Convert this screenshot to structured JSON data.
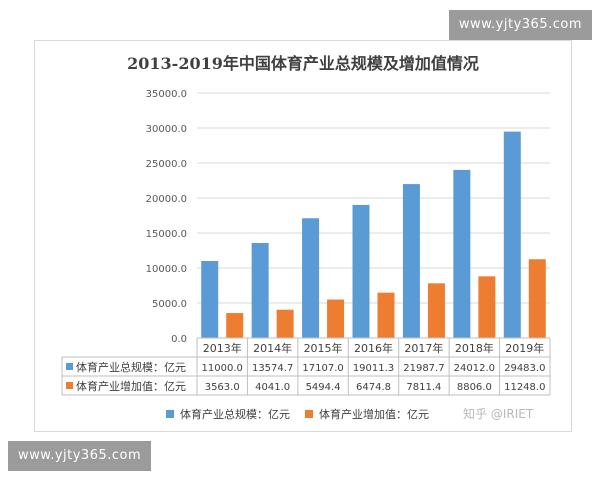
{
  "watermark_top": "www.yjty365.com",
  "watermark_bottom": "www.yjty365.com",
  "zhihu_credit": "知乎 @IRIET",
  "chart_data": {
    "type": "bar",
    "title": "2013-2019年中国体育产业总规模及增加值情况",
    "categories": [
      "2013年",
      "2014年",
      "2015年",
      "2016年",
      "2017年",
      "2018年",
      "2019年"
    ],
    "series": [
      {
        "name": "体育产业总规模：亿元",
        "color": "#5b9bd5",
        "values": [
          11000.0,
          13574.7,
          17107.0,
          19011.3,
          21987.7,
          24012.0,
          29483.0
        ],
        "labels": [
          "11000.0",
          "13574.7",
          "17107.0",
          "19011.3",
          "21987.7",
          "24012.0",
          "29483.0"
        ]
      },
      {
        "name": "体育产业增加值：亿元",
        "color": "#ed7d31",
        "values": [
          3563.0,
          4041.0,
          5494.4,
          6474.8,
          7811.4,
          8806.0,
          11248.0
        ],
        "labels": [
          "3563.0",
          "4041.0",
          "5494.4",
          "6474.8",
          "7811.4",
          "8806.0",
          "11248.0"
        ]
      }
    ],
    "ylim": [
      0,
      35000
    ],
    "yticks": [
      "0.0",
      "5000.0",
      "10000.0",
      "15000.0",
      "20000.0",
      "25000.0",
      "30000.0",
      "35000.0"
    ],
    "grid": true,
    "legend": "bottom",
    "data_table": true
  }
}
